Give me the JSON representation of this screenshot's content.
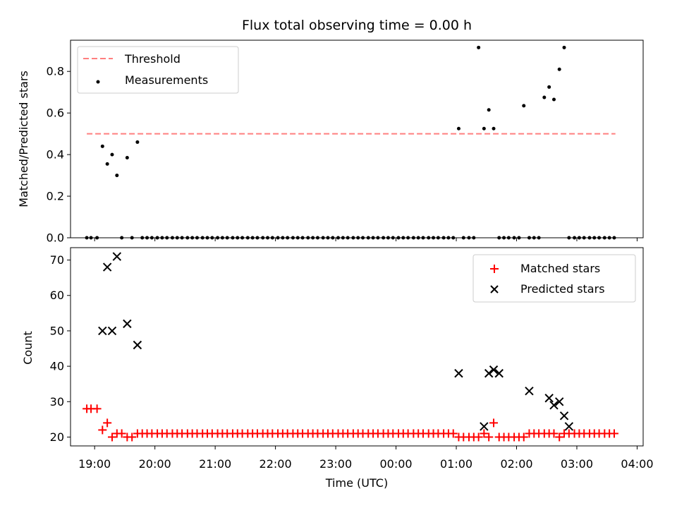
{
  "colors": {
    "threshold": "#ff7f7f",
    "measurement": "#000000",
    "matched": "#ff0000",
    "predicted": "#000000"
  },
  "chart_data": [
    {
      "type": "scatter",
      "title": "Flux total observing time = 0.00 h",
      "xlabel": "",
      "ylabel": "Matched/Predicted stars",
      "ylim": [
        0,
        0.95
      ],
      "yticks": [
        0.0,
        0.2,
        0.4,
        0.6,
        0.8
      ],
      "ytick_labels": [
        "0.0",
        "0.2",
        "0.4",
        "0.6",
        "0.8"
      ],
      "xlim_hours": [
        18.6,
        28.1
      ],
      "xticks_hours": [
        19,
        20,
        21,
        22,
        23,
        24,
        25,
        26,
        27,
        28
      ],
      "grid": false,
      "legend": "upper-left",
      "threshold": {
        "name": "Threshold",
        "value": 0.5,
        "x_range_hours": [
          18.87,
          27.64
        ]
      },
      "series": [
        {
          "name": "Measurements",
          "x_hours": [
            18.87,
            18.94,
            19.04,
            19.13,
            19.21,
            19.29,
            19.37,
            19.45,
            19.54,
            19.62,
            19.71,
            19.79,
            19.87,
            19.95,
            20.04,
            20.12,
            20.2,
            20.29,
            20.37,
            20.45,
            20.54,
            20.62,
            20.7,
            20.79,
            20.87,
            20.95,
            21.04,
            21.12,
            21.2,
            21.29,
            21.37,
            21.45,
            21.54,
            21.62,
            21.7,
            21.79,
            21.87,
            21.95,
            22.04,
            22.12,
            22.2,
            22.29,
            22.37,
            22.45,
            22.54,
            22.62,
            22.7,
            22.79,
            22.87,
            22.95,
            23.04,
            23.12,
            23.2,
            23.29,
            23.37,
            23.45,
            23.54,
            23.62,
            23.7,
            23.79,
            23.87,
            23.95,
            24.04,
            24.12,
            24.2,
            24.29,
            24.37,
            24.45,
            24.54,
            24.62,
            24.7,
            24.79,
            24.87,
            24.95,
            25.04,
            25.12,
            25.21,
            25.29,
            25.37,
            25.46,
            25.54,
            25.62,
            25.71,
            25.79,
            25.87,
            25.96,
            26.04,
            26.12,
            26.21,
            26.29,
            26.37,
            26.46,
            26.54,
            26.62,
            26.71,
            26.79,
            26.87,
            26.96,
            27.04,
            27.12,
            27.21,
            27.29,
            27.37,
            27.46,
            27.54,
            27.62
          ],
          "y": [
            0,
            0,
            0,
            0.44,
            0.355,
            0.4,
            0.3,
            0,
            0.385,
            0,
            0.46,
            0,
            0,
            0,
            0,
            0,
            0,
            0,
            0,
            0,
            0,
            0,
            0,
            0,
            0,
            0,
            0,
            0,
            0,
            0,
            0,
            0,
            0,
            0,
            0,
            0,
            0,
            0,
            0,
            0,
            0,
            0,
            0,
            0,
            0,
            0,
            0,
            0,
            0,
            0,
            0,
            0,
            0,
            0,
            0,
            0,
            0,
            0,
            0,
            0,
            0,
            0,
            0,
            0,
            0,
            0,
            0,
            0,
            0,
            0,
            0,
            0,
            0,
            0,
            0.525,
            0,
            0,
            0,
            0.915,
            0.525,
            0.615,
            0.525,
            0,
            0,
            0,
            0,
            0,
            0.635,
            0,
            0,
            0,
            0.675,
            0.725,
            0.665,
            0.81,
            0.915,
            0,
            0,
            0,
            0,
            0,
            0,
            0,
            0,
            0,
            0
          ]
        }
      ]
    },
    {
      "type": "scatter",
      "title": "",
      "xlabel": "Time (UTC)",
      "ylabel": "Count",
      "ylim": [
        17.5,
        73.5
      ],
      "yticks": [
        20,
        30,
        40,
        50,
        60,
        70
      ],
      "ytick_labels": [
        "20",
        "30",
        "40",
        "50",
        "60",
        "70"
      ],
      "xlim_hours": [
        18.6,
        28.1
      ],
      "xticks_hours": [
        19,
        20,
        21,
        22,
        23,
        24,
        25,
        26,
        27,
        28
      ],
      "xtick_labels": [
        "19:00",
        "20:00",
        "21:00",
        "22:00",
        "23:00",
        "00:00",
        "01:00",
        "02:00",
        "03:00",
        "04:00"
      ],
      "grid": false,
      "legend": "upper-right",
      "series": [
        {
          "name": "Matched stars",
          "marker": "plus",
          "x_hours": [
            18.87,
            18.94,
            19.04,
            19.13,
            19.21,
            19.29,
            19.37,
            19.45,
            19.54,
            19.62,
            19.71,
            19.79,
            19.87,
            19.95,
            20.04,
            20.12,
            20.2,
            20.29,
            20.37,
            20.45,
            20.54,
            20.62,
            20.7,
            20.79,
            20.87,
            20.95,
            21.04,
            21.12,
            21.2,
            21.29,
            21.37,
            21.45,
            21.54,
            21.62,
            21.7,
            21.79,
            21.87,
            21.95,
            22.04,
            22.12,
            22.2,
            22.29,
            22.37,
            22.45,
            22.54,
            22.62,
            22.7,
            22.79,
            22.87,
            22.95,
            23.04,
            23.12,
            23.2,
            23.29,
            23.37,
            23.45,
            23.54,
            23.62,
            23.7,
            23.79,
            23.87,
            23.95,
            24.04,
            24.12,
            24.2,
            24.29,
            24.37,
            24.45,
            24.54,
            24.62,
            24.7,
            24.79,
            24.87,
            24.95,
            25.04,
            25.12,
            25.21,
            25.29,
            25.37,
            25.46,
            25.54,
            25.62,
            25.71,
            25.79,
            25.87,
            25.96,
            26.04,
            26.12,
            26.21,
            26.29,
            26.37,
            26.46,
            26.54,
            26.62,
            26.71,
            26.79,
            26.87,
            26.96,
            27.04,
            27.12,
            27.21,
            27.29,
            27.37,
            27.46,
            27.54,
            27.62
          ],
          "y": [
            28,
            28,
            28,
            22,
            24,
            20,
            21,
            21,
            20,
            20,
            21,
            21,
            21,
            21,
            21,
            21,
            21,
            21,
            21,
            21,
            21,
            21,
            21,
            21,
            21,
            21,
            21,
            21,
            21,
            21,
            21,
            21,
            21,
            21,
            21,
            21,
            21,
            21,
            21,
            21,
            21,
            21,
            21,
            21,
            21,
            21,
            21,
            21,
            21,
            21,
            21,
            21,
            21,
            21,
            21,
            21,
            21,
            21,
            21,
            21,
            21,
            21,
            21,
            21,
            21,
            21,
            21,
            21,
            21,
            21,
            21,
            21,
            21,
            21,
            20,
            20,
            20,
            20,
            20,
            21,
            20,
            24,
            20,
            20,
            20,
            20,
            20,
            20,
            21,
            21,
            21,
            21,
            21,
            21,
            20,
            21,
            21,
            21,
            21,
            21,
            21,
            21,
            21,
            21,
            21,
            21
          ]
        },
        {
          "name": "Predicted stars",
          "marker": "x",
          "x_hours": [
            19.13,
            19.21,
            19.29,
            19.37,
            19.54,
            19.71,
            25.04,
            25.46,
            25.54,
            25.62,
            25.71,
            26.21,
            26.54,
            26.62,
            26.71,
            26.79,
            26.87
          ],
          "y": [
            50,
            68,
            50,
            71,
            52,
            46,
            38,
            23,
            38,
            39,
            38,
            33,
            31,
            29,
            30,
            26,
            23
          ]
        }
      ]
    }
  ]
}
